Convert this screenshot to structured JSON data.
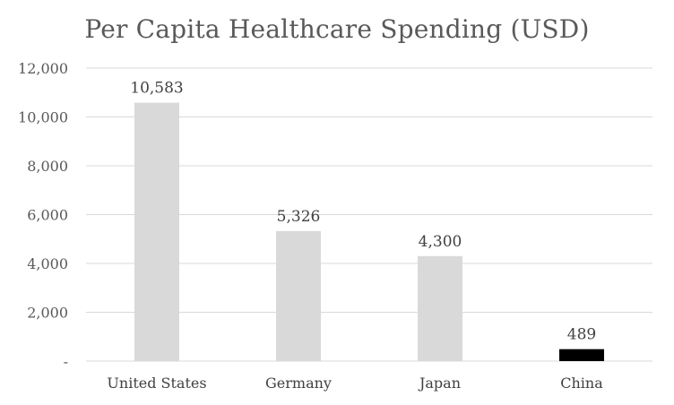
{
  "chart_data": {
    "type": "bar",
    "title": "Per Capita Healthcare Spending (USD)",
    "categories": [
      "United States",
      "Germany",
      "Japan",
      "China"
    ],
    "values": [
      10583,
      5326,
      4300,
      489
    ],
    "data_labels": [
      "10,583",
      "5,326",
      "4,300",
      "489"
    ],
    "bar_colors": [
      "#d9d9d9",
      "#d9d9d9",
      "#d9d9d9",
      "#000000"
    ],
    "ylim": [
      0,
      12000
    ],
    "y_ticks": [
      0,
      2000,
      4000,
      6000,
      8000,
      10000,
      12000
    ],
    "y_tick_labels": [
      "-",
      "2,000",
      "4,000",
      "6,000",
      "8,000",
      "10,000",
      "12,000"
    ],
    "grid": true,
    "legend": "none"
  }
}
